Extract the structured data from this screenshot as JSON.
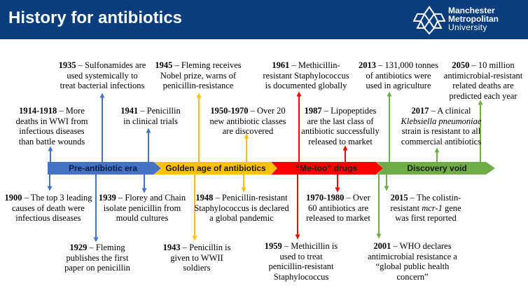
{
  "header": {
    "title": "History for antibiotics",
    "logo": {
      "line1": "Manchester",
      "line2": "Metropolitan",
      "line3": "University"
    }
  },
  "colors": {
    "header_bg": "#0a3d7d",
    "era1": "#4472c4",
    "era2": "#ffc000",
    "era3": "#ff0000",
    "era4": "#70ad47"
  },
  "eras": [
    {
      "label": "Pre-antibiotic era",
      "color": "#4472c4"
    },
    {
      "label": "Golden age of antibiotics",
      "color": "#ffc000"
    },
    {
      "label": "“Me-too” drugs",
      "color": "#ff0000"
    },
    {
      "label": "Discovery void",
      "color": "#70ad47"
    }
  ],
  "events": [
    {
      "year": "1935",
      "text": [
        "– Sulfonamides are",
        "used systemically to",
        "treat bacterial infections"
      ]
    },
    {
      "year": "1914-1918",
      "text": [
        "– More",
        "deaths in WWI from",
        "infectious diseases",
        "than battle wounds"
      ]
    },
    {
      "year": "1945",
      "text": [
        "– Fleming receives",
        "Nobel prize, warns of",
        "penicillin-resistance"
      ]
    },
    {
      "year": "1941",
      "text": [
        "– Penicillin",
        "in clinical trials"
      ]
    },
    {
      "year": "1950-1970",
      "text": [
        "– Over 20",
        "new antibiotic classes",
        "are discovered"
      ]
    },
    {
      "year": "1961",
      "text": [
        "– Methicillin-",
        "resistant Staphylococcus",
        "is documented globally"
      ]
    },
    {
      "year": "1987",
      "text": [
        "– Lipopeptides",
        "are the last class of",
        "antibiotic successfully",
        "released to market"
      ]
    },
    {
      "year": "2013",
      "text": [
        "– 131,000 tonnes",
        "of antibiotics were",
        "used in agriculture"
      ]
    },
    {
      "year": "2050",
      "text": [
        "– 10 million",
        "antimicrobial-resistant",
        "related deaths are",
        "predicted each year"
      ]
    },
    {
      "year": "2017",
      "text": [
        "– A clinical",
        "Klebsiella pneumoniae",
        "strain is resistant to all",
        "commercial antibiotics"
      ]
    },
    {
      "year": "1900",
      "text": [
        "– The top 3 leading",
        "causes of death were",
        "infectious diseases"
      ]
    },
    {
      "year": "1939",
      "text": [
        "– Florey and Chain",
        "isolate penicillin from",
        "mould cultures"
      ]
    },
    {
      "year": "1948",
      "text": [
        "– Penicillin-resistant",
        "Staphylococcus is declared",
        "a global pandemic"
      ]
    },
    {
      "year": "1970-1980",
      "text": [
        "– Over",
        "60 antibiotics are",
        "released to market"
      ]
    },
    {
      "year": "2015",
      "text": [
        "– The colistin-",
        "resistant mcr-1 gene",
        "was first reported"
      ]
    },
    {
      "year": "1929",
      "text": [
        "– Fleming",
        "publishes the first",
        "paper on penicillin"
      ]
    },
    {
      "year": "1943",
      "text": [
        "– Penicillin is",
        "given to WWII",
        "soldiers"
      ]
    },
    {
      "year": "1959",
      "text": [
        "– Methicillin is",
        "used to treat",
        "penicillin-resistant",
        "Staphylococcus"
      ]
    },
    {
      "year": "2001",
      "text": [
        "– WHO declares",
        "antimicrobial resistance a",
        "“global public health",
        "concern”"
      ]
    }
  ]
}
